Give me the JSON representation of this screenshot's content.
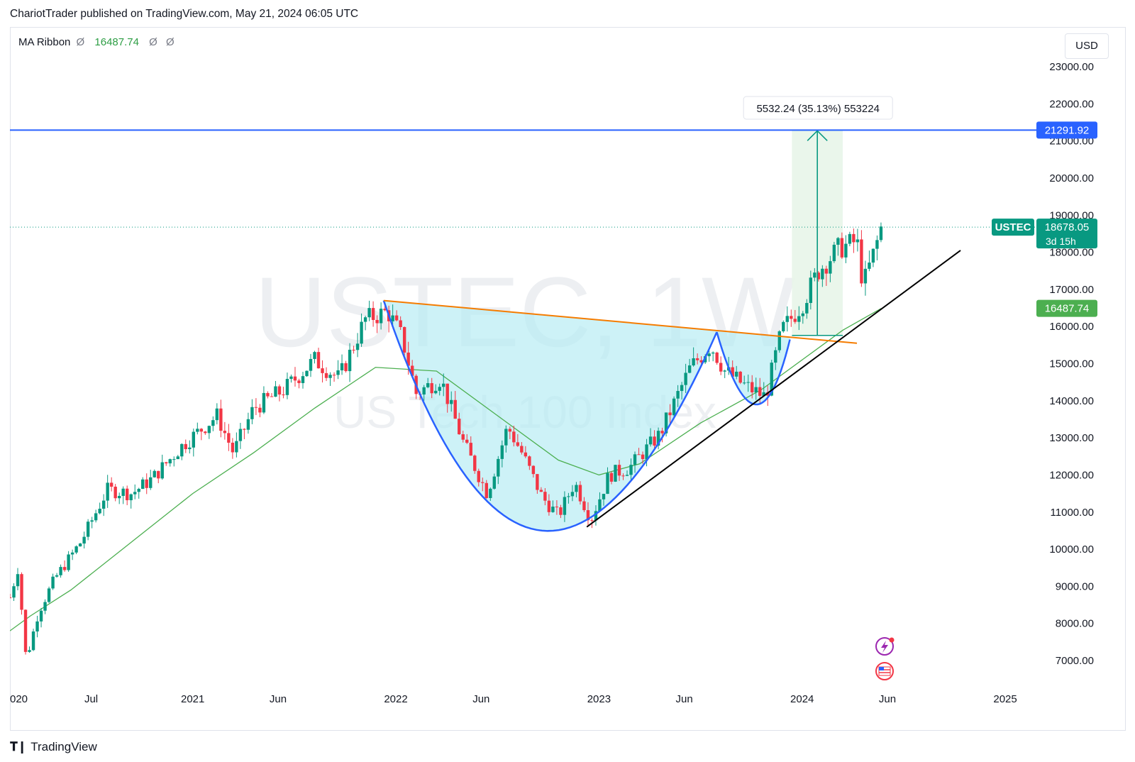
{
  "header": {
    "publisher_line": "ChariotTrader published on TradingView.com, May 21, 2024 06:05 UTC"
  },
  "indicator": {
    "name": "MA Ribbon",
    "symbol": "Ø",
    "value": "16487.74"
  },
  "currency_button": "USD",
  "watermark": {
    "symbol_interval": "USTEC, 1W",
    "instrument": "US Tech 100 Index"
  },
  "footer": {
    "brand": "TradingView"
  },
  "colors": {
    "up": "#089981",
    "down": "#f23645",
    "ma": "#4caf50",
    "resistance": "#2962ff",
    "neckline": "#f57c00",
    "trendline": "#000000",
    "cup": "#2962ff",
    "cup_fill": "#b2ebf2",
    "projection_fill": "#e8f5e9",
    "projection_line": "#089981"
  },
  "chart_data": {
    "type": "candlestick",
    "interval": "1W",
    "symbol": "USTEC",
    "y_axis": {
      "min": 6300,
      "max": 23700,
      "ticks": [
        "23000.00",
        "22000.00",
        "21000.00",
        "20000.00",
        "19000.00",
        "18000.00",
        "17000.00",
        "16000.00",
        "15000.00",
        "14000.00",
        "13000.00",
        "12000.00",
        "11000.00",
        "10000.00",
        "9000.00",
        "8000.00",
        "7000.00"
      ]
    },
    "x_axis": {
      "start": 2020.1,
      "end": 2025.15,
      "ticks": [
        {
          "label": "020",
          "t": 2020.0
        },
        {
          "label": "Jul",
          "t": 2020.5
        },
        {
          "label": "2021",
          "t": 2021.0
        },
        {
          "label": "Jun",
          "t": 2021.42
        },
        {
          "label": "2022",
          "t": 2022.0
        },
        {
          "label": "Jun",
          "t": 2022.42
        },
        {
          "label": "2023",
          "t": 2023.0
        },
        {
          "label": "Jun",
          "t": 2023.42
        },
        {
          "label": "2024",
          "t": 2024.0
        },
        {
          "label": "Jun",
          "t": 2024.42
        },
        {
          "label": "2025",
          "t": 2025.0
        }
      ]
    },
    "price_path": [
      [
        2020.1,
        8700
      ],
      [
        2020.14,
        9500
      ],
      [
        2020.18,
        7000
      ],
      [
        2020.24,
        8300
      ],
      [
        2020.32,
        9200
      ],
      [
        2020.45,
        10200
      ],
      [
        2020.58,
        11600
      ],
      [
        2020.7,
        11500
      ],
      [
        2020.8,
        11900
      ],
      [
        2020.95,
        12800
      ],
      [
        2021.12,
        13600
      ],
      [
        2021.2,
        12600
      ],
      [
        2021.3,
        13800
      ],
      [
        2021.45,
        14300
      ],
      [
        2021.6,
        15100
      ],
      [
        2021.72,
        14600
      ],
      [
        2021.85,
        16200
      ],
      [
        2021.96,
        16400
      ],
      [
        2022.03,
        15700
      ],
      [
        2022.1,
        14200
      ],
      [
        2022.22,
        14600
      ],
      [
        2022.33,
        12900
      ],
      [
        2022.45,
        11500
      ],
      [
        2022.55,
        13300
      ],
      [
        2022.62,
        12600
      ],
      [
        2022.72,
        11400
      ],
      [
        2022.8,
        10900
      ],
      [
        2022.88,
        11800
      ],
      [
        2022.96,
        10800
      ],
      [
        2023.05,
        12000
      ],
      [
        2023.15,
        12200
      ],
      [
        2023.3,
        13100
      ],
      [
        2023.45,
        14900
      ],
      [
        2023.55,
        15500
      ],
      [
        2023.62,
        14800
      ],
      [
        2023.72,
        14400
      ],
      [
        2023.82,
        14100
      ],
      [
        2023.9,
        15900
      ],
      [
        2024.0,
        16600
      ],
      [
        2024.08,
        17500
      ],
      [
        2024.18,
        18100
      ],
      [
        2024.27,
        18300
      ],
      [
        2024.3,
        17100
      ],
      [
        2024.36,
        18100
      ],
      [
        2024.39,
        18678
      ]
    ],
    "moving_average": {
      "label": "MA Ribbon",
      "last": 16487.74,
      "points": [
        [
          2020.1,
          7800
        ],
        [
          2020.2,
          8200
        ],
        [
          2020.4,
          8900
        ],
        [
          2020.7,
          10200
        ],
        [
          2021.0,
          11500
        ],
        [
          2021.3,
          12600
        ],
        [
          2021.6,
          13800
        ],
        [
          2021.9,
          14900
        ],
        [
          2022.2,
          14800
        ],
        [
          2022.5,
          13600
        ],
        [
          2022.8,
          12400
        ],
        [
          2023.0,
          12000
        ],
        [
          2023.2,
          12300
        ],
        [
          2023.5,
          13400
        ],
        [
          2023.8,
          14300
        ],
        [
          2024.0,
          15100
        ],
        [
          2024.2,
          15900
        ],
        [
          2024.39,
          16488
        ]
      ]
    },
    "price_labels": [
      {
        "text": "USTEC",
        "value": "18678.05",
        "sub": "3d 15h",
        "price": 18678.05
      },
      {
        "text": "",
        "value": "16487.74",
        "price": 16487.74
      },
      {
        "text": "",
        "value": "21291.92",
        "price": 21291.92
      }
    ],
    "annotations": {
      "resistance_level": 21291.92,
      "neckline": {
        "from": [
          2021.94,
          16700
        ],
        "to": [
          2024.27,
          15550
        ]
      },
      "trendline": {
        "from": [
          2022.94,
          10600
        ],
        "to": [
          2024.78,
          18050
        ]
      },
      "cup": {
        "start": [
          2021.94,
          16700
        ],
        "bottom": [
          2022.68,
          10500
        ],
        "end": [
          2023.58,
          15850
        ]
      },
      "handle": {
        "start": [
          2023.58,
          15850
        ],
        "bottom": [
          2023.78,
          13900
        ],
        "end": [
          2023.94,
          15650
        ]
      },
      "projection": {
        "from_t": 2023.95,
        "to_t": 2024.2,
        "base": 15760,
        "target": 21291.92,
        "label": "5532.24 (35.13%) 553224"
      }
    }
  }
}
